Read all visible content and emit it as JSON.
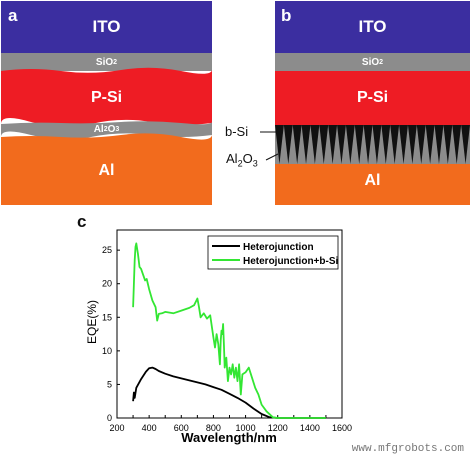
{
  "panel_a": {
    "letter": "a",
    "layers": {
      "ito": "ITO",
      "sio2_base": "SiO",
      "sio2_sub": "2",
      "psi": "P-Si",
      "al2o3_base": "Al",
      "al2o3_sub": "2",
      "al2o3_tail": "O",
      "al2o3_sub2": "3",
      "al": "Al"
    }
  },
  "panel_b": {
    "letter": "b",
    "layers": {
      "ito": "ITO",
      "sio2_base": "SiO",
      "sio2_sub": "2",
      "psi": "P-Si",
      "al": "Al"
    },
    "side_labels": {
      "bsi": "b-Si",
      "al2o3_base": "Al",
      "al2o3_sub": "2",
      "al2o3_tail": "O",
      "al2o3_sub2": "3"
    }
  },
  "panel_c": {
    "letter": "c"
  },
  "colors": {
    "ito": "#3b2ea0",
    "sio2": "#8c8c8c",
    "psi": "#ee1c24",
    "al": "#f26b1d",
    "bsi": "#111111",
    "series_black": "#000000",
    "series_green": "#33e633"
  },
  "chart_data": {
    "type": "line",
    "xlabel": "Wavelength/nm",
    "ylabel": "EQE(%)",
    "xlim": [
      200,
      1600
    ],
    "ylim": [
      0,
      28
    ],
    "xticks": [
      200,
      300,
      400,
      500,
      600,
      700,
      800,
      900,
      1000,
      1100,
      1200,
      1300,
      1400,
      1500,
      1600
    ],
    "xticklabels": [
      "200",
      "",
      "400",
      "",
      "600",
      "",
      "800",
      "",
      "1000",
      "",
      "1200",
      "",
      "1400",
      "",
      "1600"
    ],
    "yticks": [
      0,
      5,
      10,
      15,
      20,
      25
    ],
    "yticklabels": [
      "0",
      "5",
      "10",
      "15",
      "20",
      "25"
    ],
    "legend_position": "top-right",
    "series": [
      {
        "name": "Heterojunction",
        "color": "#000000",
        "points": [
          [
            300,
            2.5
          ],
          [
            305,
            3.8
          ],
          [
            310,
            3.0
          ],
          [
            320,
            4.5
          ],
          [
            350,
            5.8
          ],
          [
            380,
            6.9
          ],
          [
            400,
            7.4
          ],
          [
            420,
            7.5
          ],
          [
            440,
            7.3
          ],
          [
            460,
            7.0
          ],
          [
            500,
            6.6
          ],
          [
            550,
            6.2
          ],
          [
            600,
            5.9
          ],
          [
            650,
            5.6
          ],
          [
            700,
            5.3
          ],
          [
            750,
            5.0
          ],
          [
            800,
            4.6
          ],
          [
            850,
            4.2
          ],
          [
            900,
            3.6
          ],
          [
            950,
            3.0
          ],
          [
            1000,
            2.3
          ],
          [
            1050,
            1.4
          ],
          [
            1100,
            0.6
          ],
          [
            1150,
            0.1
          ],
          [
            1200,
            0
          ],
          [
            1300,
            0
          ],
          [
            1400,
            0
          ],
          [
            1500,
            0
          ]
        ]
      },
      {
        "name": "Heterojunction+b-Si",
        "color": "#33e633",
        "points": [
          [
            300,
            16.5
          ],
          [
            305,
            20.0
          ],
          [
            310,
            23.5
          ],
          [
            315,
            25.5
          ],
          [
            320,
            26.0
          ],
          [
            330,
            24.5
          ],
          [
            340,
            22.5
          ],
          [
            350,
            22.2
          ],
          [
            360,
            21.5
          ],
          [
            375,
            20.5
          ],
          [
            385,
            20.7
          ],
          [
            400,
            19.2
          ],
          [
            420,
            17.5
          ],
          [
            440,
            16.5
          ],
          [
            450,
            14.5
          ],
          [
            460,
            15.5
          ],
          [
            480,
            15.6
          ],
          [
            500,
            15.8
          ],
          [
            550,
            15.6
          ],
          [
            600,
            16.0
          ],
          [
            650,
            16.4
          ],
          [
            680,
            16.8
          ],
          [
            700,
            17.8
          ],
          [
            710,
            16.5
          ],
          [
            720,
            15.0
          ],
          [
            740,
            15.6
          ],
          [
            760,
            14.8
          ],
          [
            780,
            15.3
          ],
          [
            800,
            12.0
          ],
          [
            810,
            10.5
          ],
          [
            820,
            12.5
          ],
          [
            830,
            11.0
          ],
          [
            840,
            8.0
          ],
          [
            845,
            11.5
          ],
          [
            850,
            13.0
          ],
          [
            855,
            12.5
          ],
          [
            860,
            14.0
          ],
          [
            865,
            11.0
          ],
          [
            870,
            7.5
          ],
          [
            880,
            9.0
          ],
          [
            890,
            5.5
          ],
          [
            900,
            7.5
          ],
          [
            910,
            6.5
          ],
          [
            920,
            8.0
          ],
          [
            930,
            6.0
          ],
          [
            940,
            7.5
          ],
          [
            950,
            5.5
          ],
          [
            960,
            8.0
          ],
          [
            970,
            3.5
          ],
          [
            980,
            6.5
          ],
          [
            1000,
            6.8
          ],
          [
            1020,
            7.5
          ],
          [
            1040,
            6.0
          ],
          [
            1060,
            4.5
          ],
          [
            1080,
            3.5
          ],
          [
            1100,
            2.0
          ],
          [
            1130,
            1.0
          ],
          [
            1170,
            0.1
          ],
          [
            1200,
            0
          ],
          [
            1300,
            0
          ],
          [
            1400,
            0
          ],
          [
            1500,
            0
          ]
        ]
      }
    ]
  },
  "watermark": "www.mfgrobots.com"
}
